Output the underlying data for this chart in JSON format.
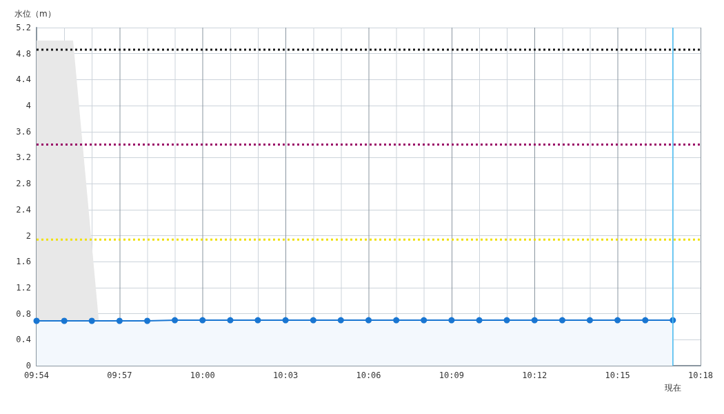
{
  "chart_data": {
    "type": "line",
    "ylabel": "水位（m）",
    "ylim": [
      0,
      5.2
    ],
    "yticks": [
      0,
      0.4,
      0.8,
      1.2,
      1.6,
      2,
      2.4,
      2.8,
      3.2,
      3.6,
      4,
      4.4,
      4.8,
      5.2
    ],
    "xlim": [
      9.9,
      10.3
    ],
    "xticks": [
      {
        "value": 9.9,
        "label": "09:54"
      },
      {
        "value": 9.9167,
        "label": null
      },
      {
        "value": 9.9333,
        "label": null
      },
      {
        "value": 9.95,
        "label": "09:57"
      },
      {
        "value": 9.9667,
        "label": null
      },
      {
        "value": 9.9833,
        "label": null
      },
      {
        "value": 10,
        "label": "10:00"
      },
      {
        "value": 10.0167,
        "label": null
      },
      {
        "value": 10.0333,
        "label": null
      },
      {
        "value": 10.05,
        "label": "10:03"
      },
      {
        "value": 10.0667,
        "label": null
      },
      {
        "value": 10.0833,
        "label": null
      },
      {
        "value": 10.1,
        "label": "10:06"
      },
      {
        "value": 10.1167,
        "label": null
      },
      {
        "value": 10.1333,
        "label": null
      },
      {
        "value": 10.15,
        "label": "10:09"
      },
      {
        "value": 10.1667,
        "label": null
      },
      {
        "value": 10.1833,
        "label": null
      },
      {
        "value": 10.2,
        "label": "10:12"
      },
      {
        "value": 10.2167,
        "label": null
      },
      {
        "value": 10.2333,
        "label": null
      },
      {
        "value": 10.25,
        "label": "10:15"
      },
      {
        "value": 10.2667,
        "label": null
      },
      {
        "value": 10.2833,
        "label": null
      },
      {
        "value": 10.3,
        "label": "10:18"
      }
    ],
    "series": [
      {
        "type": "area",
        "color": "#e8e8e8",
        "marker": "none",
        "x": [
          9.9,
          9.922,
          9.94
        ],
        "values": [
          5,
          5,
          0
        ]
      },
      {
        "type": "area",
        "color": "#1976d2",
        "marker": "circle",
        "x": [
          9.9,
          9.9167,
          9.9333,
          9.95,
          9.9667,
          9.9833,
          10,
          10.0167,
          10.0333,
          10.05,
          10.0667,
          10.0833,
          10.1,
          10.1167,
          10.1333,
          10.15,
          10.1667,
          10.1833,
          10.2,
          10.2167,
          10.2333,
          10.25,
          10.2667,
          10.2833
        ],
        "values": [
          0.69,
          0.69,
          0.69,
          0.69,
          0.69,
          0.7,
          0.7,
          0.7,
          0.7,
          0.7,
          0.7,
          0.7,
          0.7,
          0.7,
          0.7,
          0.7,
          0.7,
          0.7,
          0.7,
          0.7,
          0.7,
          0.7,
          0.7,
          0.7
        ]
      }
    ],
    "ref_lines": [
      {
        "axis": "y",
        "value": 4.86,
        "color": "#1a1a1a",
        "line_style": "dotted"
      },
      {
        "axis": "y",
        "value": 3.4,
        "color": "#990066",
        "line_style": "dotted"
      },
      {
        "axis": "y",
        "value": 1.94,
        "color": "#f0e000",
        "line_style": "dotted"
      },
      {
        "axis": "x",
        "value": 10.2833,
        "label": "現在",
        "color": "#4fc3f7",
        "line_style": "solid"
      }
    ],
    "grid": true
  }
}
